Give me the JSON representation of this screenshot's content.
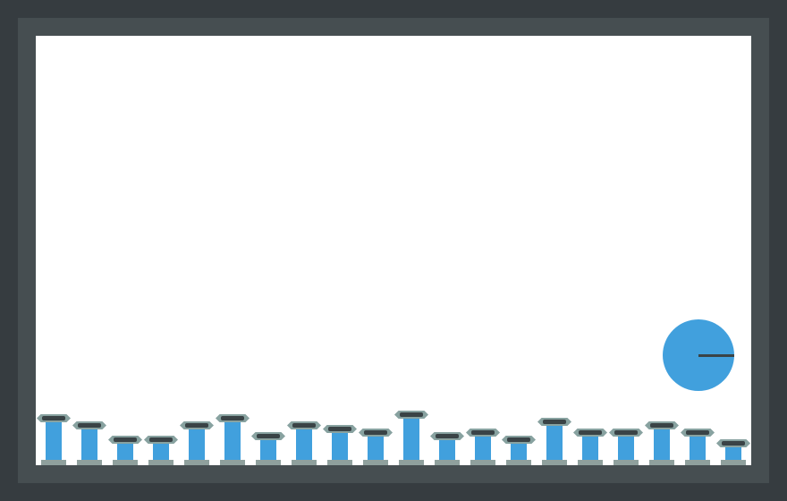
{
  "game": {
    "colors": {
      "background": "#363c40",
      "frame": "#464e51",
      "playfield": "#ffffff",
      "pillar": "#41a0dd",
      "pillar_cap": "#88a2a0",
      "pillar_cap_bar": "#3a4346",
      "ball": "#41a0dd"
    },
    "pillar_count": 20,
    "pillar_heights": [
      48,
      40,
      24,
      24,
      40,
      48,
      28,
      40,
      36,
      32,
      52,
      28,
      32,
      24,
      44,
      32,
      32,
      40,
      32,
      20
    ],
    "ball_heading": "right"
  }
}
